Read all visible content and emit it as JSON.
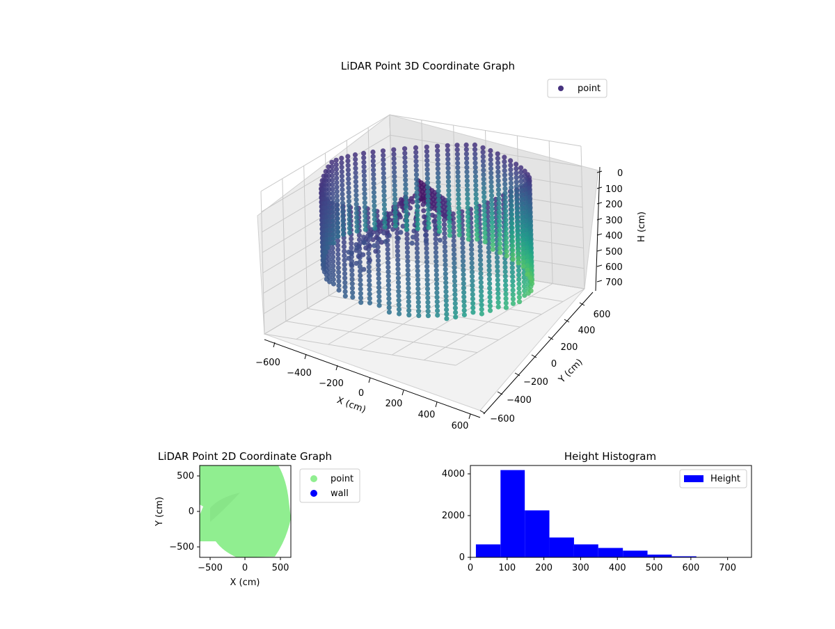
{
  "chart_data": [
    {
      "type": "scatter",
      "title": "LiDAR Point 3D Coordinate Graph",
      "xlabel": "X (cm)",
      "ylabel": "Y (cm)",
      "zlabel": "H (cm)",
      "xlim": [
        -600,
        600
      ],
      "ylim": [
        -600,
        600
      ],
      "zlim": [
        0,
        750
      ],
      "z_inverted": true,
      "x_ticks": [
        "−600",
        "−400",
        "−200",
        "0",
        "200",
        "400",
        "600"
      ],
      "y_ticks": [
        "−600",
        "−400",
        "−200",
        "0",
        "200",
        "400",
        "600"
      ],
      "z_ticks": [
        "0",
        "100",
        "200",
        "300",
        "400",
        "500",
        "600",
        "700"
      ],
      "colormap": "viridis",
      "legend": {
        "placement": "top-right",
        "entries": [
          {
            "label": "point",
            "color": "#46327e"
          }
        ]
      },
      "grid": true
    },
    {
      "type": "scatter",
      "title": "LiDAR Point 2D Coordinate Graph",
      "xlabel": "X (cm)",
      "ylabel": "Y (cm)",
      "xlim": [
        -650,
        650
      ],
      "ylim": [
        -650,
        650
      ],
      "x_ticks": [
        "−500",
        "0",
        "500"
      ],
      "y_ticks": [
        "−500",
        "0",
        "500"
      ],
      "legend": {
        "placement": "outside-right",
        "entries": [
          {
            "label": "point",
            "color": "#90ee90"
          },
          {
            "label": "wall",
            "color": "#0000ff"
          }
        ]
      },
      "series": [
        {
          "name": "point",
          "color": "#90ee90"
        },
        {
          "name": "wall",
          "color": "#0000ff"
        }
      ]
    },
    {
      "type": "bar",
      "title": "Height Histogram",
      "bins": [
        {
          "x0": 15,
          "x1": 82,
          "count": 620
        },
        {
          "x0": 82,
          "x1": 148,
          "count": 4180
        },
        {
          "x0": 148,
          "x1": 215,
          "count": 2250
        },
        {
          "x0": 215,
          "x1": 282,
          "count": 950
        },
        {
          "x0": 282,
          "x1": 348,
          "count": 620
        },
        {
          "x0": 348,
          "x1": 415,
          "count": 450
        },
        {
          "x0": 415,
          "x1": 482,
          "count": 320
        },
        {
          "x0": 482,
          "x1": 548,
          "count": 130
        },
        {
          "x0": 548,
          "x1": 615,
          "count": 50
        },
        {
          "x0": 615,
          "x1": 682,
          "count": 15
        }
      ],
      "xlim": [
        0,
        765
      ],
      "ylim": [
        0,
        4400
      ],
      "x_ticks": [
        0,
        100,
        200,
        300,
        400,
        500,
        600,
        700
      ],
      "y_ticks": [
        0,
        2000,
        4000
      ],
      "color": "#0000ff",
      "legend": {
        "placement": "top-right",
        "entries": [
          {
            "label": "Height",
            "color": "#0000ff"
          }
        ]
      }
    }
  ]
}
